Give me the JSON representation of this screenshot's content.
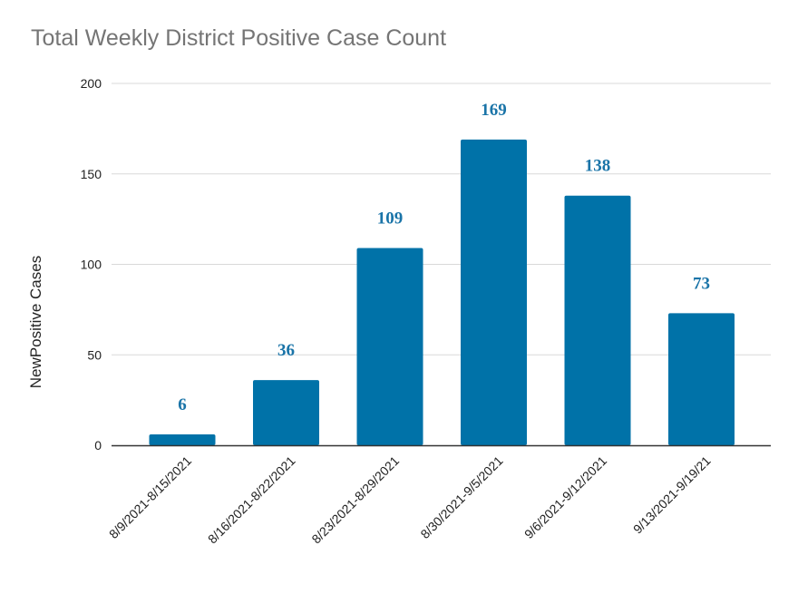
{
  "chart_data": {
    "type": "bar",
    "title": "Total Weekly District Positive Case Count",
    "xlabel": "",
    "ylabel": "NewPositive Cases",
    "categories": [
      "8/9/2021-8/15/2021",
      "8/16/2021-8/22/2021",
      "8/23/2021-8/29/2021",
      "8/30/2021-9/5/2021",
      "9/6/2021-9/12/2021",
      "9/13/2021-9/19/21"
    ],
    "values": [
      6,
      36,
      109,
      169,
      138,
      73
    ],
    "data_labels": [
      "6",
      "36",
      "109",
      "169",
      "138",
      "73"
    ],
    "ylim": [
      0,
      200
    ],
    "yticks": [
      0,
      50,
      100,
      150,
      200
    ],
    "ytick_labels": [
      "0",
      "50",
      "100",
      "150",
      "200"
    ],
    "grid": true,
    "legend": "none",
    "colors": {
      "bar": "#0072A8",
      "data_label": "#1A74A8",
      "grid": "#D9D9D9",
      "axis": "#333333",
      "title": "#757575"
    }
  }
}
